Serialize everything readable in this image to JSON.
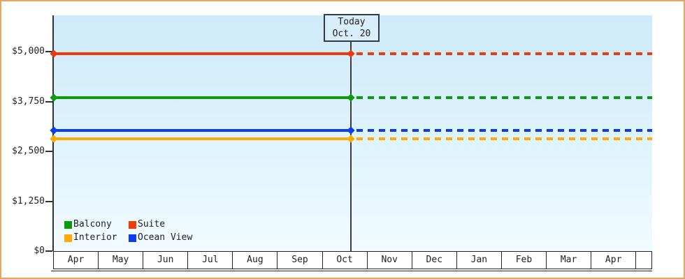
{
  "today": {
    "line1": "Today",
    "line2": "Oct. 20"
  },
  "colors": {
    "frame_border": "#e9a55c",
    "axis": "#333333",
    "text": "#222222",
    "plot_bg_top": "#cfeafa",
    "plot_bg_bottom": "#f2fbff",
    "today_box_bg": "#d9eefb",
    "month_cell_bg": "#ffffff"
  },
  "chart_data": {
    "type": "line",
    "title": "",
    "categories": [
      "Apr",
      "May",
      "Jun",
      "Jul",
      "Aug",
      "Sep",
      "Oct",
      "Nov",
      "Dec",
      "Jan",
      "Feb",
      "Mar",
      "Apr"
    ],
    "yticks": [
      {
        "label": "$0",
        "value": 0
      },
      {
        "label": "$1,250",
        "value": 1250
      },
      {
        "label": "$2,500",
        "value": 2500
      },
      {
        "label": "$3,750",
        "value": 3750
      },
      {
        "label": "$5,000",
        "value": 5000
      }
    ],
    "ylim": [
      0,
      5900
    ],
    "grid": false,
    "legend_position": "inside-bottom-left",
    "today_marker": {
      "label": "Today",
      "date": "Oct. 20",
      "month": "Oct",
      "month_index": 6,
      "month_fraction": 0.65
    },
    "line_style": {
      "before_today": "solid",
      "after_today": "dashed"
    },
    "series": [
      {
        "name": "Balcony",
        "color": "#0a9a0a",
        "value": 3840
      },
      {
        "name": "Suite",
        "color": "#f23909",
        "value": 4950
      },
      {
        "name": "Interior",
        "color": "#ffaa00",
        "value": 2820
      },
      {
        "name": "Ocean View",
        "color": "#0b3cf0",
        "value": 3030
      }
    ]
  }
}
